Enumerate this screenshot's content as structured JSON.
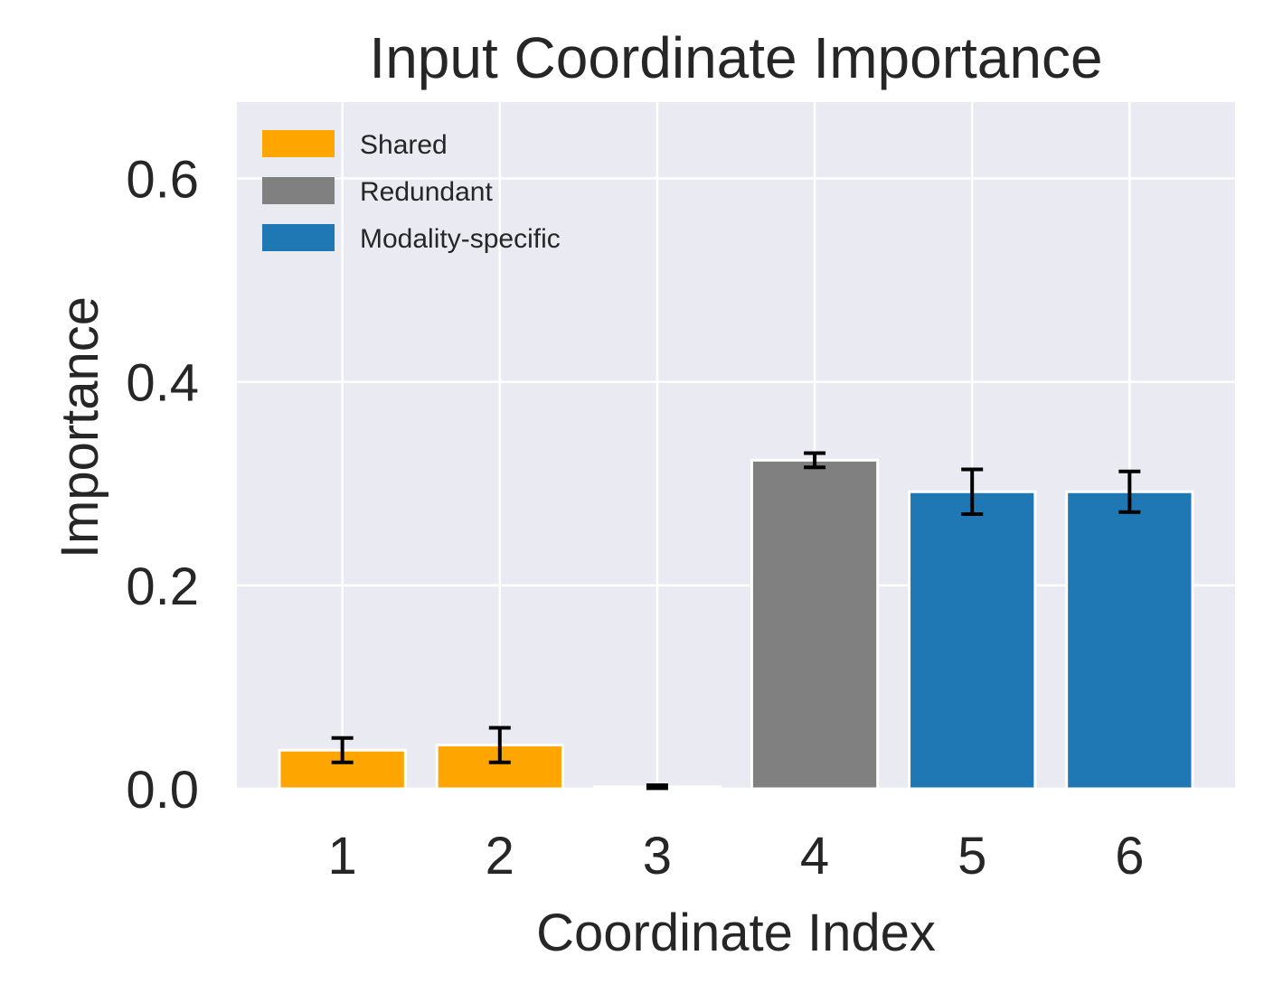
{
  "chart_data": {
    "type": "bar",
    "title": "Input Coordinate Importance",
    "xlabel": "Coordinate Index",
    "ylabel": "Importance",
    "categories": [
      "1",
      "2",
      "3",
      "4",
      "5",
      "6"
    ],
    "values": [
      0.038,
      0.043,
      0.002,
      0.323,
      0.292,
      0.292
    ],
    "errors": [
      0.012,
      0.017,
      0.0015,
      0.007,
      0.022,
      0.02
    ],
    "groups": [
      "Shared",
      "Shared",
      "Shared",
      "Redundant",
      "Modality-specific",
      "Modality-specific"
    ],
    "ylim": [
      0,
      0.675
    ],
    "yticks": [
      0.0,
      0.2,
      0.4,
      0.6
    ],
    "ytick_labels": [
      "0.0",
      "0.2",
      "0.4",
      "0.6"
    ],
    "grid": true,
    "legend": {
      "position": "top-left",
      "entries": [
        {
          "label": "Shared",
          "color": "#FFA500"
        },
        {
          "label": "Redundant",
          "color": "#808080"
        },
        {
          "label": "Modality-specific",
          "color": "#1F77B4"
        }
      ]
    },
    "background_color": "#EAEAF2",
    "grid_color": "#FFFFFF",
    "error_color": "#000000"
  }
}
